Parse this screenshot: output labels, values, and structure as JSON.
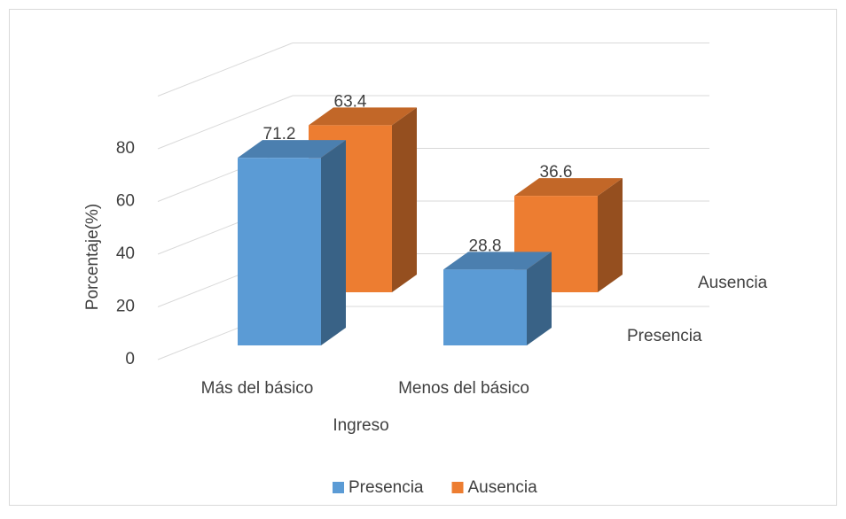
{
  "chart_data": {
    "type": "bar3d",
    "categories": [
      "Más del básico",
      "Menos del básico"
    ],
    "series": [
      {
        "name": "Presencia",
        "color": "#5b9bd5",
        "values": [
          71.2,
          28.8
        ]
      },
      {
        "name": "Ausencia",
        "color": "#ed7d31",
        "values": [
          63.4,
          36.6
        ]
      }
    ],
    "y_label": "Porcentaje(%)",
    "x_label": "Ingreso",
    "ylim": [
      0,
      100
    ],
    "yticks": [
      0,
      20,
      40,
      60,
      80
    ],
    "grid": true,
    "legend": "bottom"
  }
}
